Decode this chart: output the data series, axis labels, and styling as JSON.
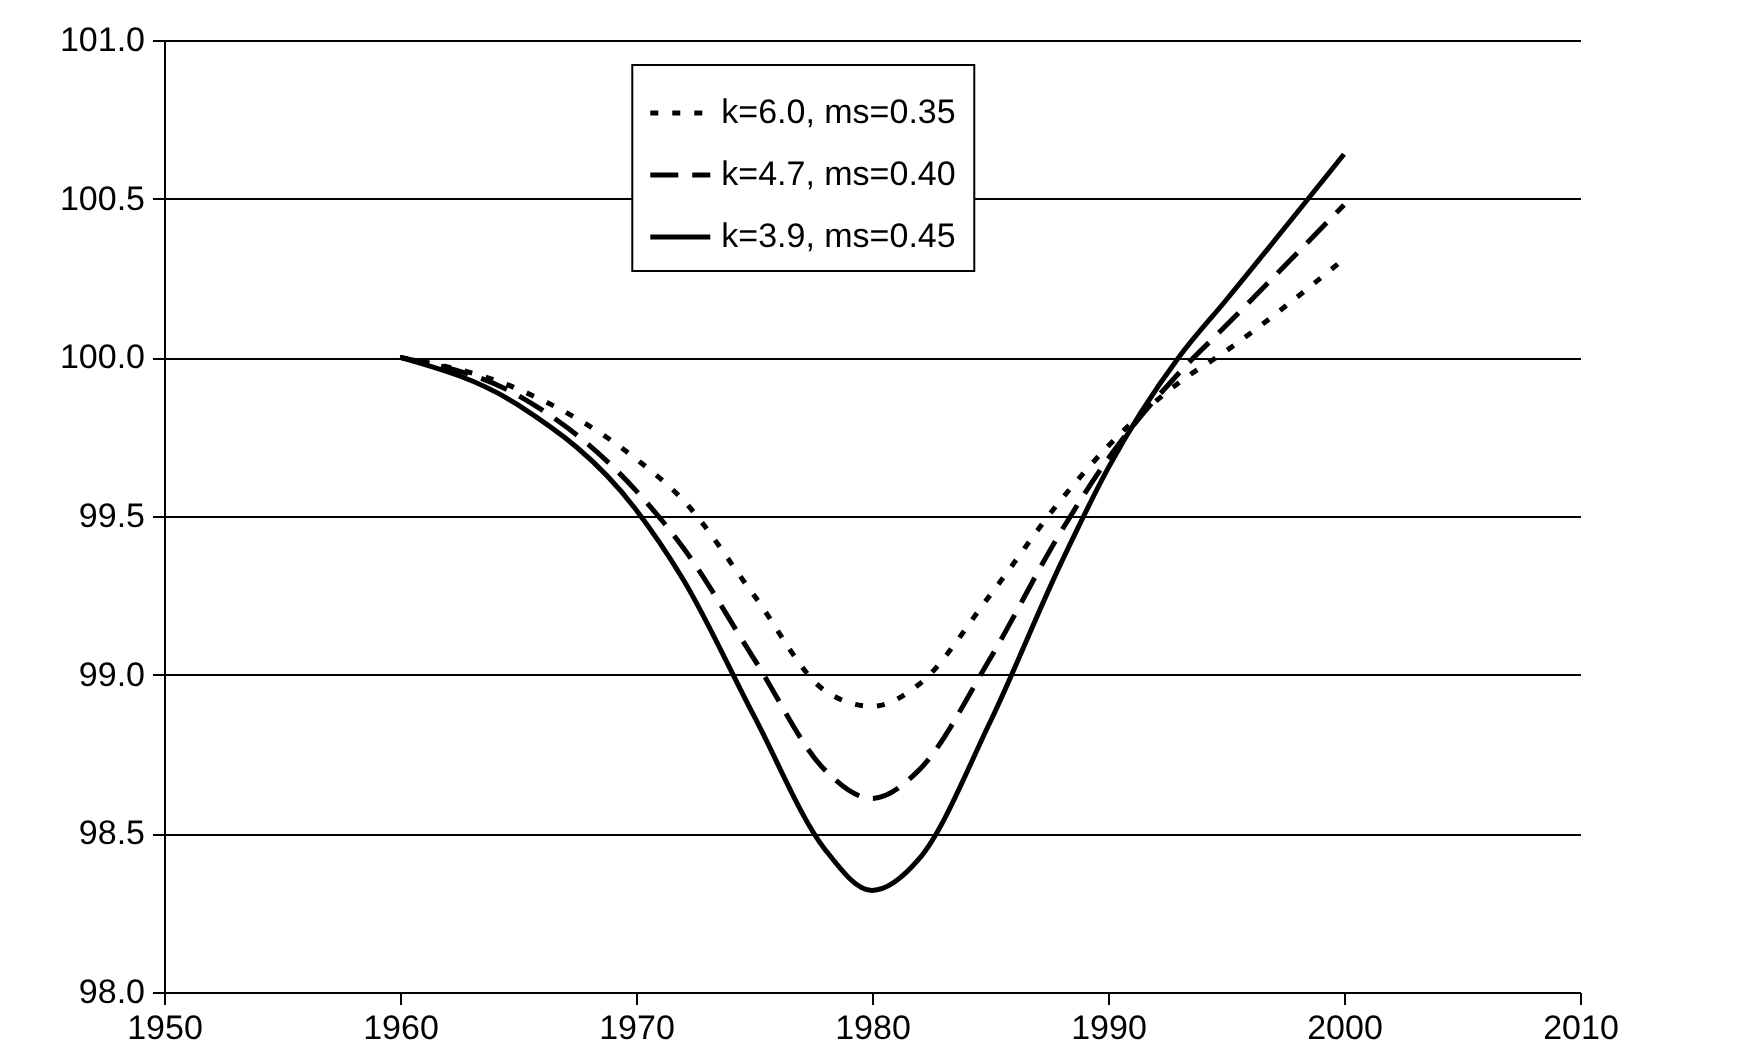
{
  "chart_data": {
    "type": "line",
    "x": [
      1960,
      1965,
      1970,
      1972,
      1975,
      1978,
      1980,
      1982,
      1985,
      1988,
      1990,
      1993,
      1995,
      2000
    ],
    "series": [
      {
        "name": "k=6.0, ms=0.35",
        "color": "#000000",
        "line_style": "dotted",
        "values": [
          100.0,
          99.9,
          99.68,
          99.55,
          99.25,
          98.95,
          98.9,
          98.97,
          99.25,
          99.55,
          99.72,
          99.92,
          100.02,
          100.31
        ]
      },
      {
        "name": "k=4.7, ms=0.40",
        "color": "#000000",
        "line_style": "dashed",
        "values": [
          100.0,
          99.88,
          99.58,
          99.4,
          99.05,
          98.7,
          98.61,
          98.7,
          99.05,
          99.45,
          99.68,
          99.95,
          100.1,
          100.48
        ]
      },
      {
        "name": "k=3.9, ms=0.45",
        "color": "#000000",
        "line_style": "solid",
        "values": [
          100.0,
          99.85,
          99.52,
          99.3,
          98.87,
          98.45,
          98.32,
          98.42,
          98.85,
          99.35,
          99.65,
          100.0,
          100.18,
          100.64
        ]
      }
    ],
    "xlim": [
      1950,
      2010
    ],
    "xticks": [
      1950,
      1960,
      1970,
      1980,
      1990,
      2000,
      2010
    ],
    "ylim": [
      98.0,
      101.0
    ],
    "yticks": [
      {
        "value": 98,
        "label": "98.0"
      },
      {
        "value": 98.5,
        "label": "98.5"
      },
      {
        "value": 99,
        "label": "99.0"
      },
      {
        "value": 99.5,
        "label": "99.5"
      },
      {
        "value": 100,
        "label": "100.0"
      },
      {
        "value": 100.5,
        "label": "100.5"
      },
      {
        "value": 101,
        "label": "101.0"
      }
    ],
    "grid": "y",
    "legend": "top",
    "marker": "none"
  }
}
